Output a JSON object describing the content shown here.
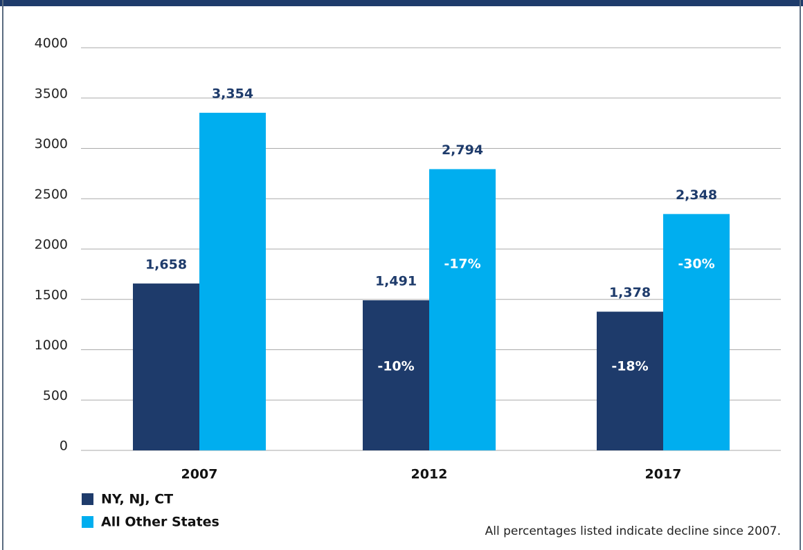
{
  "chart_data": {
    "type": "bar",
    "categories": [
      "2007",
      "2012",
      "2017"
    ],
    "series": [
      {
        "name": "NY, NJ, CT",
        "color": "#1e3b6b",
        "values": [
          1658,
          1491,
          1378
        ],
        "value_labels": [
          "1,658",
          "1,491",
          "1,378"
        ],
        "change_labels": [
          null,
          "-10%",
          "-18%"
        ]
      },
      {
        "name": "All Other States",
        "color": "#00aeef",
        "values": [
          3354,
          2794,
          2348
        ],
        "value_labels": [
          "3,354",
          "2,794",
          "2,348"
        ],
        "change_labels": [
          null,
          "-17%",
          "-30%"
        ]
      }
    ],
    "ylim": [
      0,
      4000
    ],
    "yticks": [
      0,
      500,
      1000,
      1500,
      2000,
      2500,
      3000,
      3500,
      4000
    ],
    "grid": true,
    "legend": "bottom-left",
    "annotation": "All percentages listed indicate decline since 2007."
  }
}
